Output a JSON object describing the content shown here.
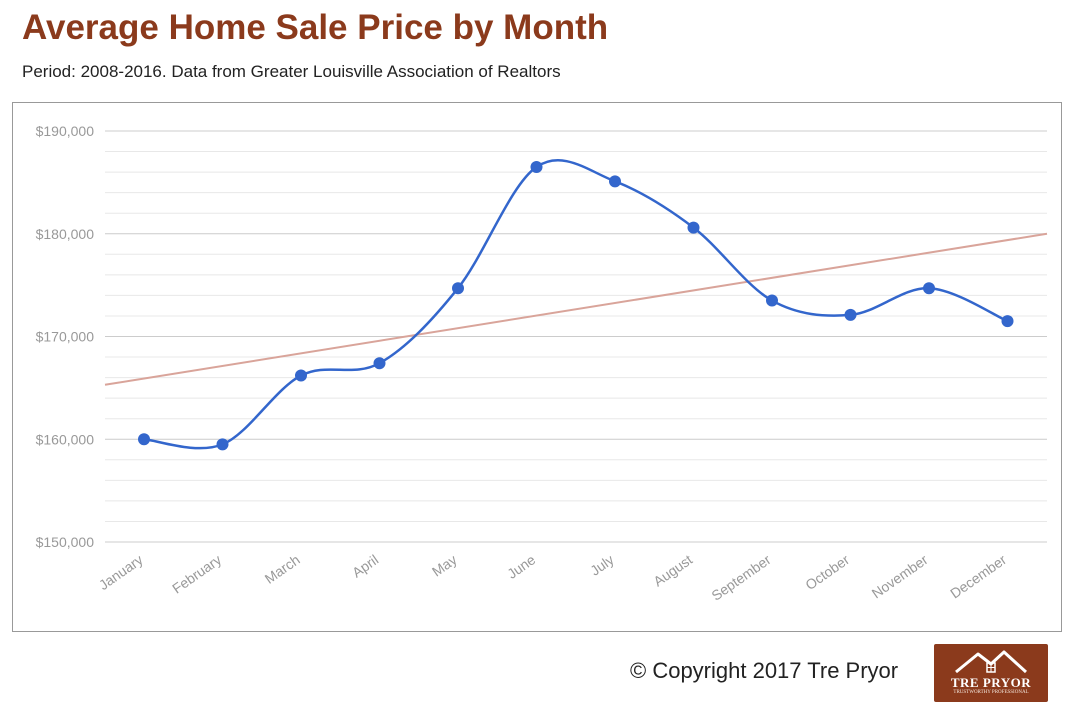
{
  "header": {
    "title": "Average Home Sale Price by Month",
    "subtitle": "Period: 2008-2016. Data from Greater Louisville Association of Realtors"
  },
  "footer": {
    "copyright": "© Copyright 2017 Tre Pryor",
    "logo_text": "TRE PRYOR",
    "logo_subtext": "TRUSTWORTHY PROFESSIONAL"
  },
  "colors": {
    "title": "#8b3a1c",
    "series_line": "#3366cc",
    "trendline": "#d9a49a",
    "gridline": "#dddddd",
    "axis_label": "#999999",
    "logo_bg": "#8b3a1c"
  },
  "chart_data": {
    "type": "line",
    "title": "",
    "xlabel": "",
    "ylabel": "",
    "categories": [
      "January",
      "February",
      "March",
      "April",
      "May",
      "June",
      "July",
      "August",
      "September",
      "October",
      "November",
      "December"
    ],
    "series": [
      {
        "values": [
          160000,
          159500,
          166200,
          167400,
          174700,
          186500,
          185100,
          180600,
          173500,
          172100,
          174700,
          171500
        ]
      }
    ],
    "trendline": {
      "start": 165300,
      "end": 180000
    },
    "ylim": [
      150000,
      190000
    ],
    "y_ticks": [
      150000,
      160000,
      170000,
      180000,
      190000
    ],
    "y_tick_labels": [
      "$150,000",
      "$160,000",
      "$170,000",
      "$180,000",
      "$190,000"
    ],
    "minor_gridlines_per_major": 5,
    "grid": true,
    "smooth": true,
    "legend": "none"
  }
}
